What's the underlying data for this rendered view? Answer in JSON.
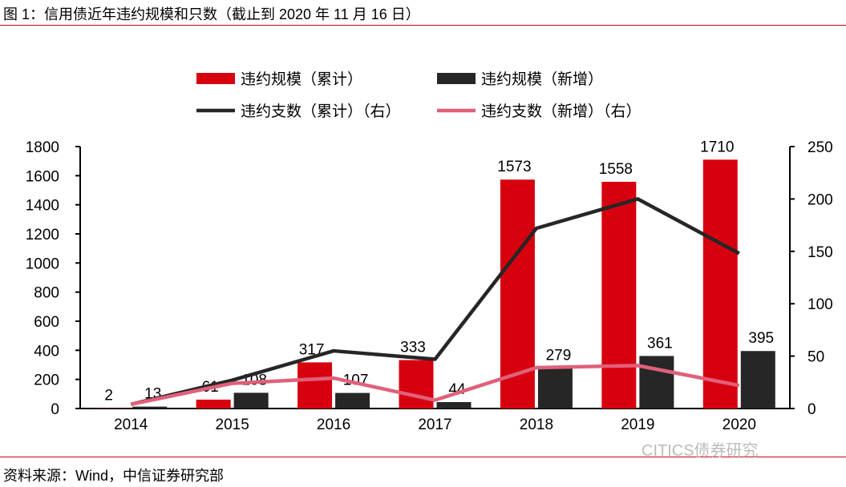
{
  "title": "图 1：信用债近年违约规模和只数（截止到 2020 年 11 月 16 日）",
  "source": "资料来源：Wind，中信证券研究部",
  "watermark": "CITICS债券研究",
  "chart_data": {
    "type": "bar",
    "categories": [
      "2014",
      "2015",
      "2016",
      "2017",
      "2018",
      "2019",
      "2020"
    ],
    "ylim": [
      0,
      1800
    ],
    "yticks": [
      0,
      200,
      400,
      600,
      800,
      1000,
      1200,
      1400,
      1600,
      1800
    ],
    "y2lim": [
      0,
      250
    ],
    "y2ticks": [
      0,
      50,
      100,
      150,
      200,
      250
    ],
    "legend_position": "top",
    "series": [
      {
        "name": "违约规模（累计）",
        "type": "bar",
        "axis": "left",
        "color": "#d7000f",
        "values": [
          2,
          61,
          317,
          333,
          1573,
          1558,
          1710
        ],
        "labels": [
          "2",
          "61",
          "317",
          "333",
          "1573",
          "1558",
          "1710"
        ]
      },
      {
        "name": "违约规模（新增）",
        "type": "bar",
        "axis": "left",
        "color": "#262626",
        "values": [
          13,
          108,
          107,
          44,
          279,
          361,
          395
        ],
        "labels": [
          "13",
          "108",
          "107",
          "44",
          "279",
          "361",
          "395"
        ]
      },
      {
        "name": "违约支数（累计）（右）",
        "type": "line",
        "axis": "right",
        "color": "#262626",
        "values": [
          4,
          27,
          55,
          47,
          172,
          200,
          148
        ]
      },
      {
        "name": "违约支数（新增）（右）",
        "type": "line",
        "axis": "right",
        "color": "#e0607a",
        "values": [
          4,
          24,
          29,
          8,
          39,
          41,
          22
        ]
      }
    ]
  }
}
